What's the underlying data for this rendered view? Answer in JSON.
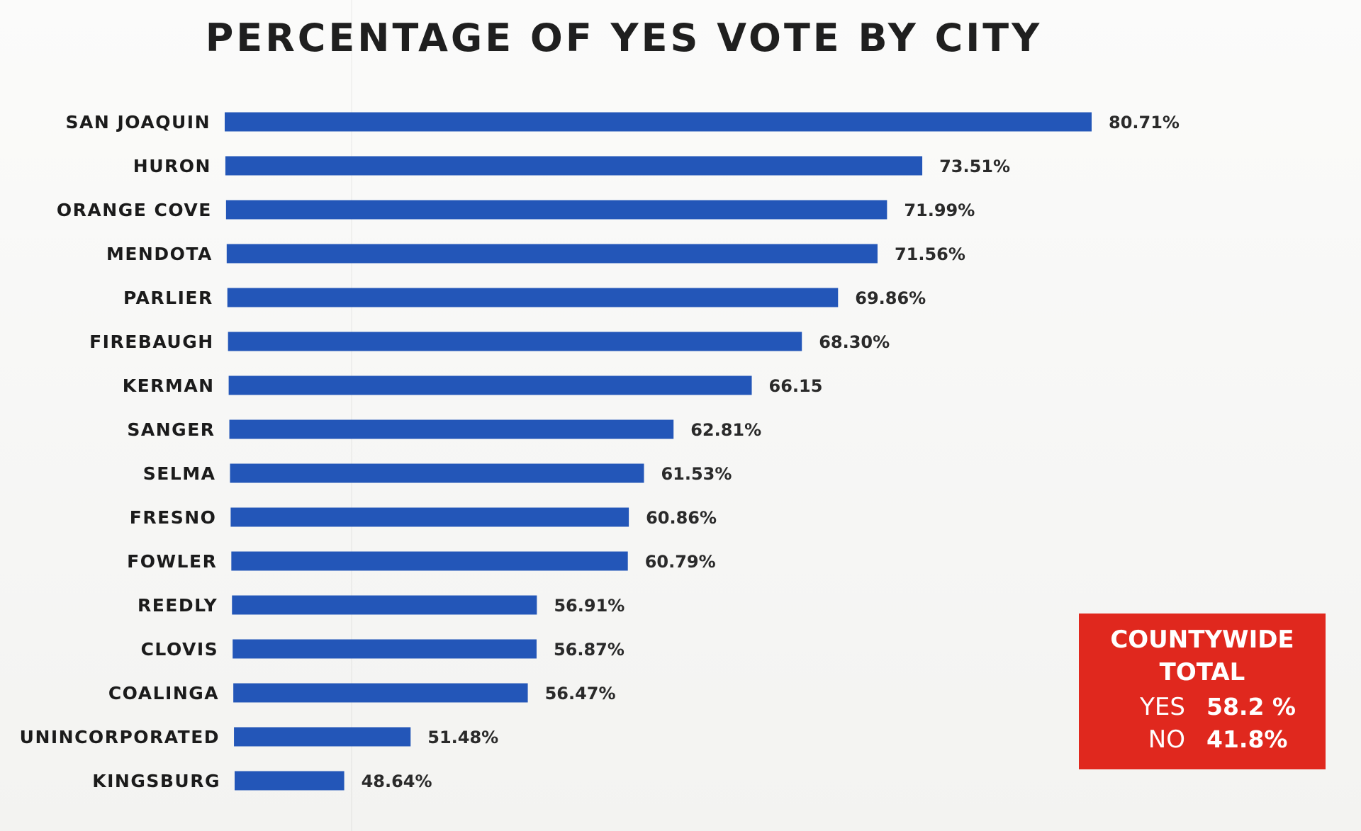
{
  "chart_data": {
    "type": "bar",
    "orientation": "horizontal",
    "title": "PERCENTAGE OF YES VOTE BY CITY",
    "xlabel": "",
    "ylabel": "",
    "categories": [
      "SAN JOAQUIN",
      "HURON",
      "ORANGE COVE",
      "MENDOTA",
      "PARLIER",
      "FIREBAUGH",
      "KERMAN",
      "SANGER",
      "SELMA",
      "FRESNO",
      "FOWLER",
      "REEDLY",
      "CLOVIS",
      "COALINGA",
      "UNINCORPORATED",
      "KINGSBURG"
    ],
    "values": [
      80.71,
      73.51,
      71.99,
      71.56,
      69.86,
      68.3,
      66.15,
      62.81,
      61.53,
      60.86,
      60.79,
      56.91,
      56.87,
      56.47,
      51.48,
      48.64
    ],
    "value_labels": [
      "80.71%",
      "73.51%",
      "71.99%",
      "71.56%",
      "69.86%",
      "68.30%",
      "66.15",
      "62.81%",
      "61.53%",
      "60.86%",
      "60.79%",
      "56.91%",
      "56.87%",
      "56.47%",
      "51.48%",
      "48.64%"
    ],
    "axis_min": 44,
    "axis_max": 80.71,
    "grid": false,
    "bar_color": "#2356b8"
  },
  "countywide": {
    "heading": "COUNTYWIDE\nTOTAL",
    "yes_label": "YES",
    "yes_value": "58.2 %",
    "no_label": "NO",
    "no_value": "41.8%",
    "box_color": "#e0281e"
  }
}
